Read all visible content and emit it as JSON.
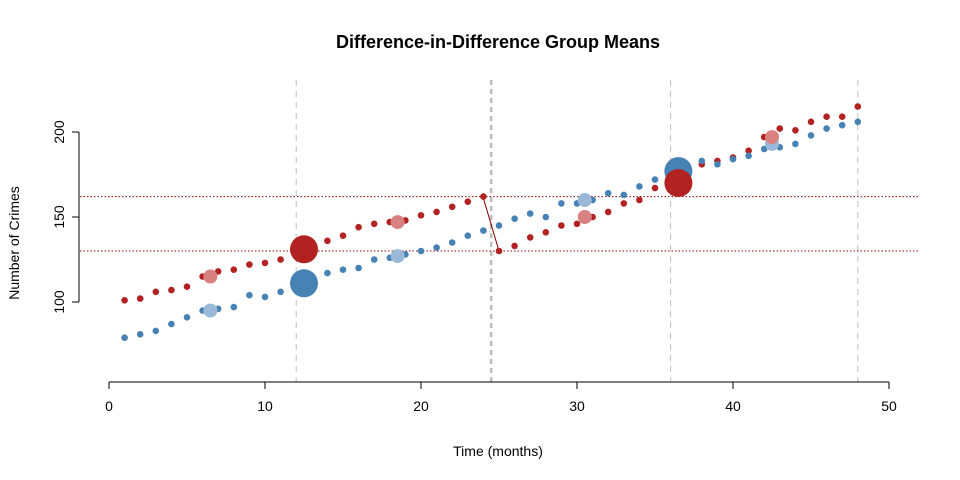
{
  "chart_data": {
    "type": "scatter",
    "title": "Difference-in-Difference Group Means",
    "xlabel": "Time (months)",
    "ylabel": "Number of Crimes",
    "xlim": [
      0,
      50
    ],
    "ylim": [
      50,
      230
    ],
    "x_ticks": [
      0,
      10,
      20,
      30,
      40,
      50
    ],
    "y_ticks": [
      100,
      150,
      200
    ],
    "grid": false,
    "legend": "none",
    "colors": {
      "treatment": "#B22222",
      "treatment_light": "#D98080",
      "control": "#4682B4",
      "control_light": "#9AB8D8",
      "vline": "#BEBEBE",
      "hline": "#8B0000"
    },
    "vertical_lines": [
      {
        "x": 12,
        "style": "dashed"
      },
      {
        "x": 24.5,
        "style": "dashed-bold"
      },
      {
        "x": 36,
        "style": "dashed"
      },
      {
        "x": 48,
        "style": "dashed"
      }
    ],
    "horizontal_lines": [
      {
        "y": 162,
        "style": "dotted"
      },
      {
        "y": 130,
        "style": "dotted"
      }
    ],
    "connector": {
      "x1": 24,
      "y1": 161,
      "x2": 25,
      "y2": 130
    },
    "series": [
      {
        "key": "treatment",
        "x": [
          1,
          2,
          3,
          4,
          5,
          6,
          7,
          8,
          9,
          10,
          11,
          12,
          13,
          14,
          15,
          16,
          17,
          18,
          19,
          20,
          21,
          22,
          23,
          24,
          25,
          26,
          27,
          28,
          29,
          30,
          31,
          32,
          33,
          34,
          35,
          36,
          37,
          38,
          39,
          40,
          41,
          42,
          43,
          44,
          45,
          46,
          47,
          48
        ],
        "values": [
          101,
          102,
          106,
          107,
          109,
          115,
          118,
          119,
          122,
          123,
          125,
          128,
          133,
          136,
          139,
          144,
          146,
          147,
          148,
          151,
          153,
          156,
          159,
          162,
          130,
          133,
          138,
          141,
          145,
          146,
          150,
          153,
          158,
          160,
          167,
          171,
          174,
          181,
          183,
          185,
          189,
          197,
          202,
          201,
          206,
          209,
          209,
          215
        ]
      },
      {
        "key": "control",
        "x": [
          1,
          2,
          3,
          4,
          5,
          6,
          7,
          8,
          9,
          10,
          11,
          12,
          13,
          14,
          15,
          16,
          17,
          18,
          19,
          20,
          21,
          22,
          23,
          24,
          25,
          26,
          27,
          28,
          29,
          30,
          31,
          32,
          33,
          34,
          35,
          36,
          37,
          38,
          39,
          40,
          41,
          42,
          43,
          44,
          45,
          46,
          47,
          48
        ],
        "values": [
          79,
          81,
          83,
          87,
          91,
          95,
          96,
          97,
          104,
          103,
          106,
          108,
          114,
          117,
          119,
          120,
          125,
          126,
          128,
          130,
          132,
          135,
          139,
          142,
          145,
          149,
          152,
          150,
          158,
          158,
          160,
          164,
          163,
          168,
          172,
          176,
          180,
          183,
          181,
          184,
          186,
          190,
          191,
          193,
          198,
          202,
          204,
          206
        ]
      }
    ],
    "group_means": [
      {
        "key": "treatment",
        "x": 6.5,
        "y": 115,
        "size": "small"
      },
      {
        "key": "control",
        "x": 6.5,
        "y": 95,
        "size": "small"
      },
      {
        "key": "treatment",
        "x": 12.5,
        "y": 131,
        "size": "large"
      },
      {
        "key": "control",
        "x": 12.5,
        "y": 111,
        "size": "large"
      },
      {
        "key": "treatment",
        "x": 18.5,
        "y": 147,
        "size": "small"
      },
      {
        "key": "control",
        "x": 18.5,
        "y": 127,
        "size": "small"
      },
      {
        "key": "control",
        "x": 30.5,
        "y": 160,
        "size": "small"
      },
      {
        "key": "treatment",
        "x": 30.5,
        "y": 150,
        "size": "small"
      },
      {
        "key": "control",
        "x": 36.5,
        "y": 177,
        "size": "large"
      },
      {
        "key": "treatment",
        "x": 36.5,
        "y": 170,
        "size": "large"
      },
      {
        "key": "control",
        "x": 42.5,
        "y": 193,
        "size": "small"
      },
      {
        "key": "treatment",
        "x": 42.5,
        "y": 197,
        "size": "small"
      }
    ]
  }
}
